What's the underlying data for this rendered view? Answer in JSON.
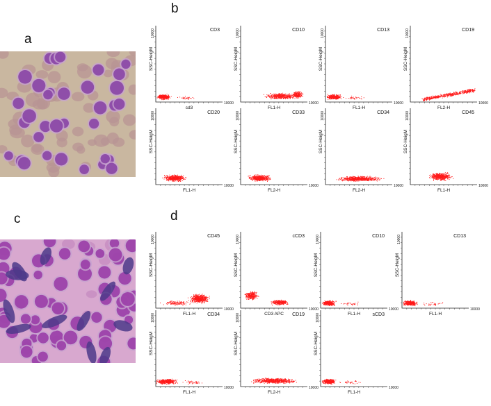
{
  "figure": {
    "panels": {
      "a": {
        "letter": "a"
      },
      "b": {
        "letter": "b",
        "plots": [
          {
            "title": "CD3",
            "ylabel": "SSC-HeigM",
            "xlabel": "cd3",
            "tmax": "10000",
            "pattern": "low-left"
          },
          {
            "title": "CD10",
            "ylabel": "SSC-HeigM",
            "xlabel": "FL1-H",
            "tmax": "10000",
            "pattern": "spread-right"
          },
          {
            "title": "CD13",
            "ylabel": "SSC-HeigM",
            "xlabel": "FL1-H",
            "tmax": "10000",
            "pattern": "low-left"
          },
          {
            "title": "CD19",
            "ylabel": "SSC-HeigM",
            "xlabel": "FL2-H",
            "tmax": "10000",
            "pattern": "diagonal-right"
          },
          {
            "title": "CD20",
            "ylabel": "SSC-HeigM",
            "xlabel": "FL1-H",
            "tmax": "10000",
            "pattern": "left-mid"
          },
          {
            "title": "CD33",
            "ylabel": "SSC-HeigM",
            "xlabel": "FL2-H",
            "tmax": "10000",
            "pattern": "left-mid"
          },
          {
            "title": "CD34",
            "ylabel": "SSC-HeigM",
            "xlabel": "FL2-H",
            "tmax": "10000",
            "pattern": "wide-band"
          },
          {
            "title": "CD45",
            "ylabel": "SSC-HeigM",
            "xlabel": "FL1-H",
            "tmax": "10000",
            "pattern": "center-mid"
          }
        ]
      },
      "c": {
        "letter": "c"
      },
      "d": {
        "letter": "d",
        "plots": [
          {
            "title": "CD45",
            "ylabel": "SSC-HeigM",
            "xlabel": "FL1-H",
            "tmax": "10000",
            "pattern": "right-high"
          },
          {
            "title": "cCD3",
            "ylabel": "SSC-HeigM",
            "xlabel": "CD3 APC",
            "tmax": "10000",
            "pattern": "two-cluster"
          },
          {
            "title": "CD10",
            "ylabel": "SSC-HeigM",
            "xlabel": "FL1-H",
            "tmax": "10000",
            "pattern": "low-left"
          },
          {
            "title": "CD13",
            "ylabel": "SSC-HeigM",
            "xlabel": "FL1-H",
            "tmax": "10000",
            "pattern": "low-left"
          },
          {
            "title": "CD34",
            "ylabel": "SSC-HeigM",
            "xlabel": "FL1-H",
            "tmax": "10000",
            "pattern": "low-left-wide"
          },
          {
            "title": "CD19",
            "ylabel": "SSC-HeigM",
            "xlabel": "FL2-H",
            "tmax": "10000",
            "pattern": "wide-band"
          },
          {
            "title": "sCD3",
            "ylabel": "SSC-HeigM",
            "xlabel": "FL1-H",
            "tmax": "10000",
            "pattern": "low-left"
          }
        ]
      }
    },
    "colors": {
      "dots": "#ff1a1a",
      "smear_bg_a": "#c9b7a0",
      "smear_bg_c": "#d8a8cf",
      "blast": "#8a46a6",
      "rbc": "#b89494"
    }
  }
}
